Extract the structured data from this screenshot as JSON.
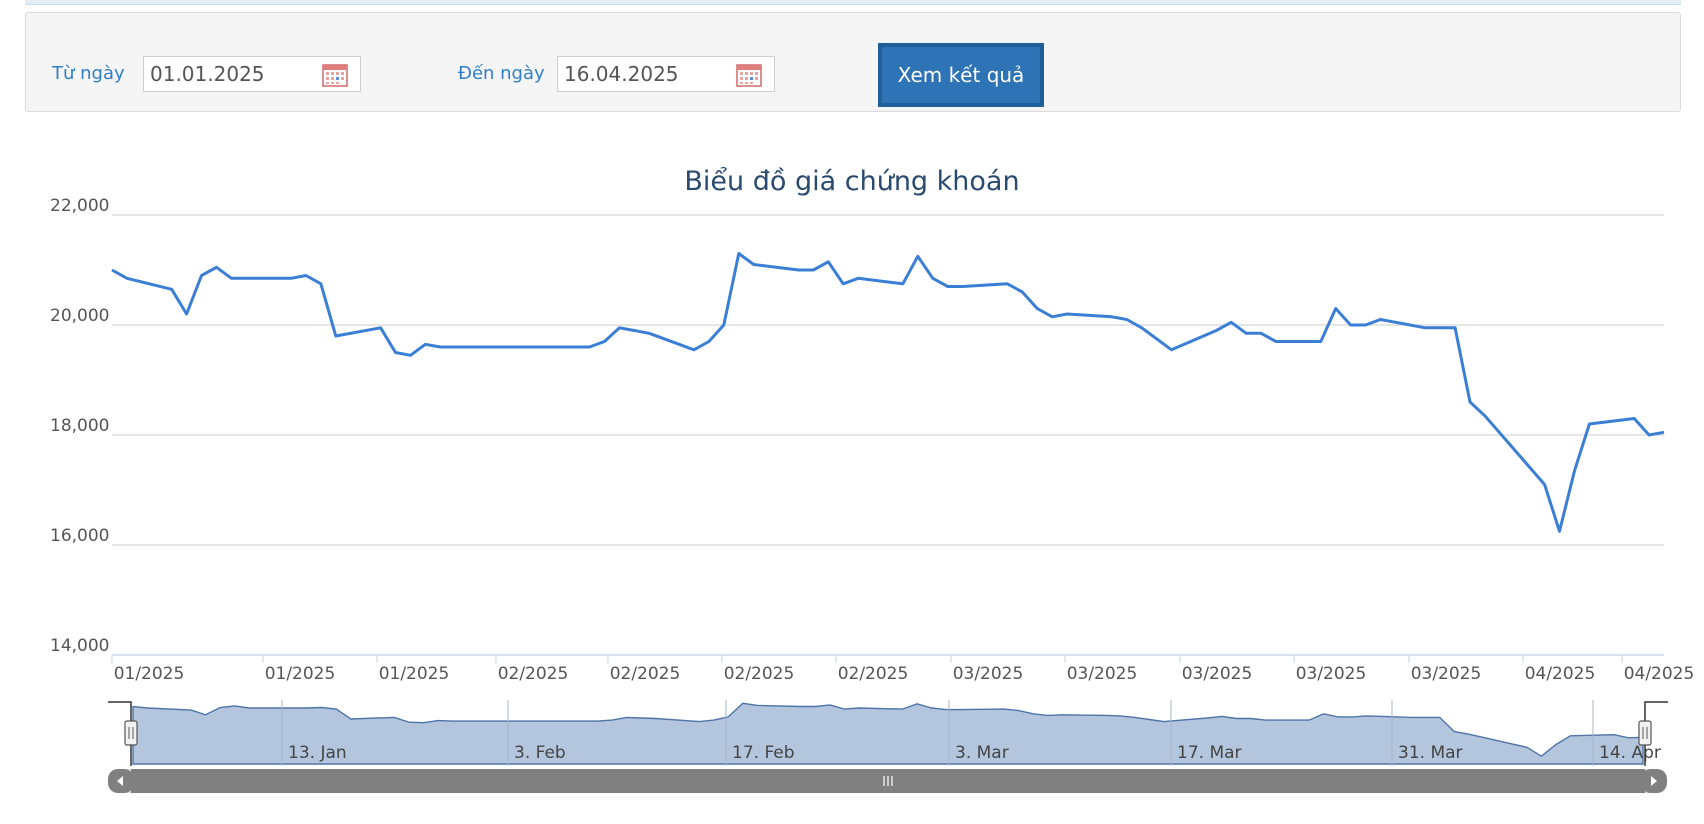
{
  "filter": {
    "from_label": "Từ ngày",
    "from_value": "01.01.2025",
    "to_label": "Đến ngày",
    "to_value": "16.04.2025",
    "submit_label": "Xem kết quả"
  },
  "colors": {
    "line": "#3a7fd5",
    "label_blue": "#2f7fc6",
    "title": "#2b4a6f",
    "navigator_fill": "#b3c6de",
    "navigator_line": "#4f74a8",
    "button_dark": "#1f5f9a",
    "button_face": "#2d73b5"
  },
  "icons": {
    "calendar": "calendar-icon",
    "navigator_left": "chevron-left-icon",
    "navigator_right": "chevron-right-icon",
    "scrollbar_grip": "grip-icon"
  },
  "chart_data": {
    "type": "line",
    "title": "Biểu đồ giá chứng khoán",
    "y_range": [
      14000,
      22000
    ],
    "y_ticks": [
      "22,000",
      "20,000",
      "18,000",
      "16,000",
      "14,000"
    ],
    "x_tick_labels": [
      "01/2025",
      "01/2025",
      "01/2025",
      "02/2025",
      "02/2025",
      "02/2025",
      "02/2025",
      "03/2025",
      "03/2025",
      "03/2025",
      "03/2025",
      "03/2025",
      "04/2025",
      "04/2025"
    ],
    "navigator_labels": [
      "13. Jan",
      "3. Feb",
      "17. Feb",
      "3. Mar",
      "17. Mar",
      "31. Mar",
      "14. Apr"
    ],
    "grid": true,
    "legend": "none",
    "series": [
      {
        "dates": [
          "2025-01-02",
          "2025-01-03",
          "2025-01-06",
          "2025-01-07",
          "2025-01-08",
          "2025-01-09",
          "2025-01-10",
          "2025-01-13",
          "2025-01-14",
          "2025-01-15",
          "2025-01-16",
          "2025-01-17",
          "2025-01-20",
          "2025-01-21",
          "2025-01-22",
          "2025-01-23",
          "2025-01-24",
          "2025-02-03",
          "2025-02-04",
          "2025-02-05",
          "2025-02-06",
          "2025-02-07",
          "2025-02-10",
          "2025-02-11",
          "2025-02-12",
          "2025-02-13",
          "2025-02-14",
          "2025-02-17",
          "2025-02-18",
          "2025-02-19",
          "2025-02-20",
          "2025-02-21",
          "2025-02-24",
          "2025-02-25",
          "2025-02-26",
          "2025-02-27",
          "2025-02-28",
          "2025-03-03",
          "2025-03-04",
          "2025-03-05",
          "2025-03-06",
          "2025-03-07",
          "2025-03-10",
          "2025-03-11",
          "2025-03-12",
          "2025-03-13",
          "2025-03-14",
          "2025-03-17",
          "2025-03-18",
          "2025-03-19",
          "2025-03-20",
          "2025-03-21",
          "2025-03-24",
          "2025-03-25",
          "2025-03-26",
          "2025-03-27",
          "2025-03-28",
          "2025-03-31",
          "2025-04-01",
          "2025-04-02",
          "2025-04-03",
          "2025-04-04",
          "2025-04-08",
          "2025-04-09",
          "2025-04-10",
          "2025-04-11",
          "2025-04-14",
          "2025-04-15",
          "2025-04-16"
        ],
        "values": [
          21000,
          20850,
          20650,
          20200,
          20900,
          21050,
          20850,
          20850,
          20850,
          20900,
          20750,
          19800,
          19950,
          19500,
          19450,
          19650,
          19600,
          19600,
          19700,
          19950,
          19900,
          19850,
          19550,
          19700,
          20000,
          21300,
          21100,
          21000,
          21000,
          21150,
          20750,
          20850,
          20750,
          21250,
          20850,
          20700,
          20700,
          20750,
          20600,
          20300,
          20150,
          20200,
          20150,
          20100,
          19950,
          19750,
          19550,
          19900,
          20050,
          19850,
          19850,
          19700,
          19700,
          20300,
          20000,
          20000,
          20100,
          19950,
          19950,
          19950,
          18600,
          18350,
          17100,
          16250,
          17350,
          18200,
          18300,
          18000,
          18050
        ]
      }
    ]
  }
}
